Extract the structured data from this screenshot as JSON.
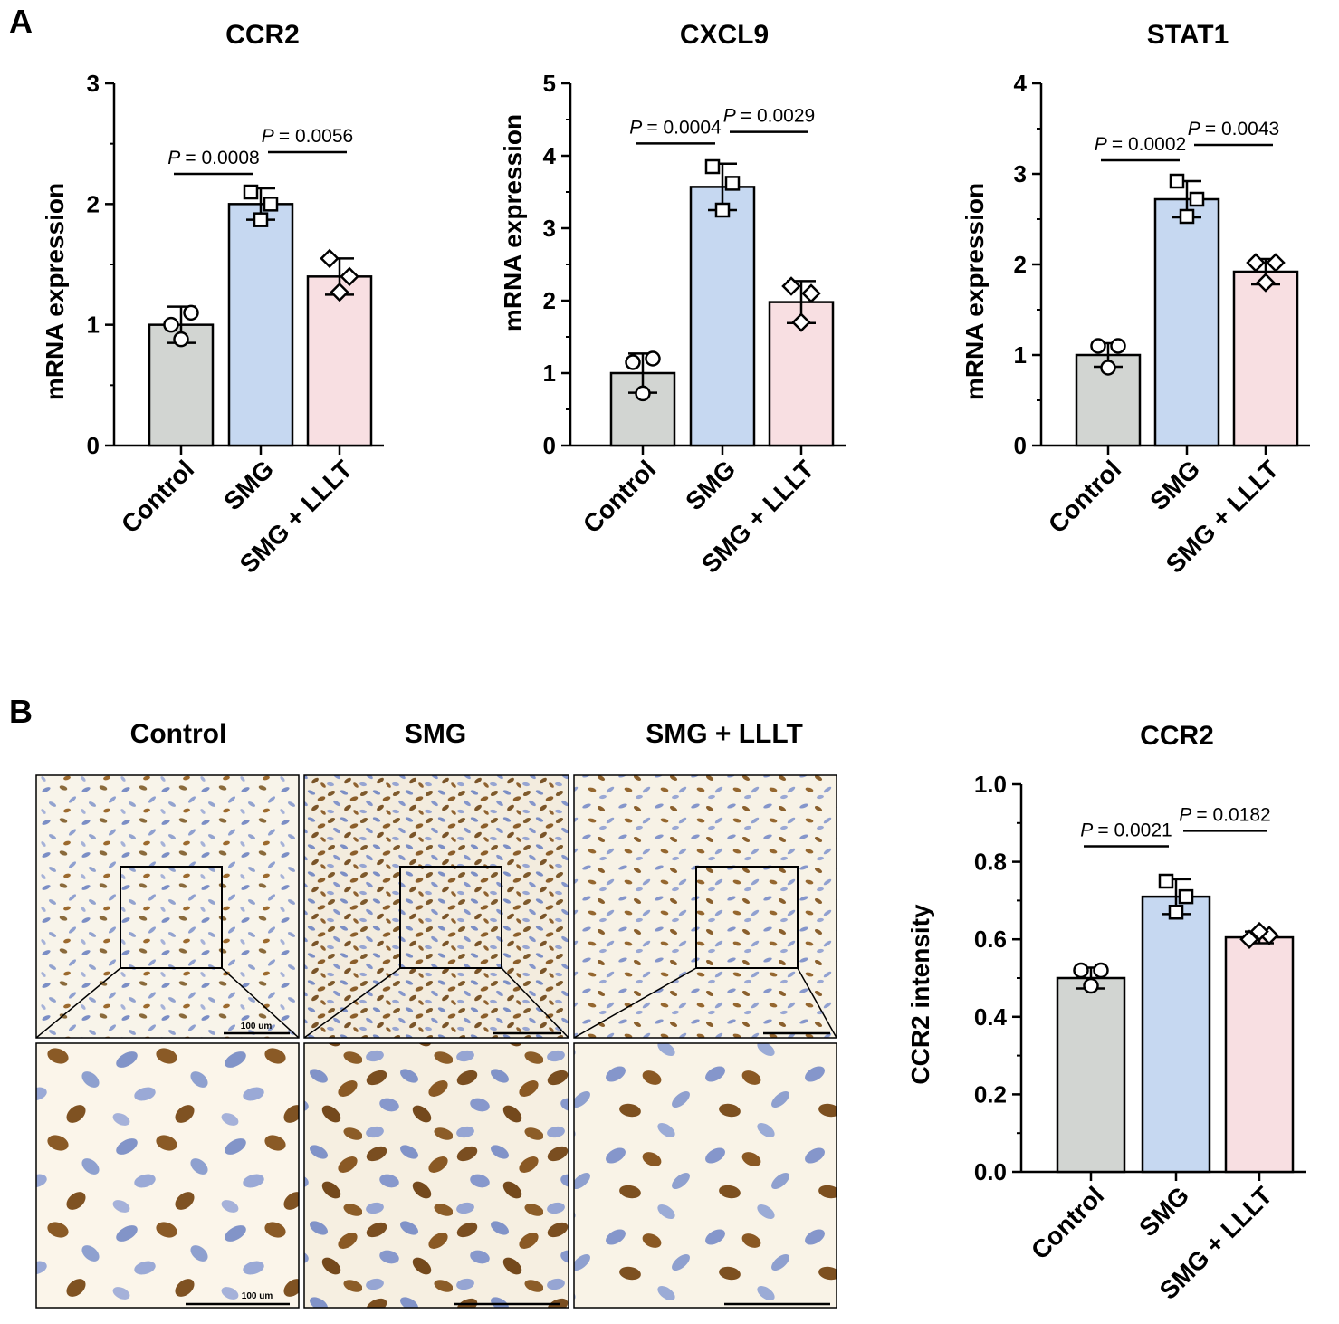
{
  "panel_labels": {
    "a": "A",
    "b": "B"
  },
  "colors": {
    "control": "#d2d5d2",
    "smg": "#c6d8f1",
    "smg_lllt": "#f8dfe2",
    "axis": "#000000"
  },
  "micrograph": {
    "column_titles": [
      "Control",
      "SMG",
      "SMG + LLLT"
    ],
    "scale_bar_label": "100 um"
  },
  "chart_data": [
    {
      "id": "ccr2-mrna",
      "type": "bar",
      "title": "CCR2",
      "xlabel": "",
      "ylabel": "mRNA expression",
      "categories": [
        "Control",
        "SMG",
        "SMG + LLLT"
      ],
      "values": [
        1.0,
        2.0,
        1.4
      ],
      "errors": [
        0.15,
        0.13,
        0.15
      ],
      "points": [
        [
          1.0,
          1.1,
          0.88
        ],
        [
          2.1,
          2.0,
          1.87
        ],
        [
          1.55,
          1.4,
          1.27
        ]
      ],
      "markers": [
        "circle",
        "square",
        "diamond"
      ],
      "ylim": [
        0,
        3
      ],
      "yticks": [
        0,
        1,
        2,
        3
      ],
      "comparisons": [
        {
          "from": 0,
          "to": 1,
          "label": "= 0.0008",
          "at": 2.25
        },
        {
          "from": 1,
          "to": 2,
          "label": "= 0.0056",
          "at": 2.43
        }
      ]
    },
    {
      "id": "cxcl9-mrna",
      "type": "bar",
      "title": "CXCL9",
      "xlabel": "",
      "ylabel": "mRNA expression",
      "categories": [
        "Control",
        "SMG",
        "SMG + LLLT"
      ],
      "values": [
        1.0,
        3.57,
        1.98
      ],
      "errors": [
        0.27,
        0.32,
        0.29
      ],
      "points": [
        [
          1.15,
          1.2,
          0.72
        ],
        [
          3.85,
          3.62,
          3.25
        ],
        [
          2.2,
          2.1,
          1.7
        ]
      ],
      "markers": [
        "circle",
        "square",
        "diamond"
      ],
      "ylim": [
        0,
        5
      ],
      "yticks": [
        0,
        1,
        2,
        3,
        4,
        5
      ],
      "comparisons": [
        {
          "from": 0,
          "to": 1,
          "label": "= 0.0004",
          "at": 4.17
        },
        {
          "from": 1,
          "to": 2,
          "label": "= 0.0029",
          "at": 4.33
        }
      ]
    },
    {
      "id": "stat1-mrna",
      "type": "bar",
      "title": "STAT1",
      "xlabel": "",
      "ylabel": "mRNA expression",
      "categories": [
        "Control",
        "SMG",
        "SMG + LLLT"
      ],
      "values": [
        1.0,
        2.72,
        1.92
      ],
      "errors": [
        0.13,
        0.2,
        0.14
      ],
      "points": [
        [
          1.1,
          1.1,
          0.86
        ],
        [
          2.92,
          2.72,
          2.53
        ],
        [
          2.02,
          2.02,
          1.8
        ]
      ],
      "markers": [
        "circle",
        "square",
        "diamond"
      ],
      "ylim": [
        0,
        4
      ],
      "yticks": [
        0,
        1,
        2,
        3,
        4
      ],
      "comparisons": [
        {
          "from": 0,
          "to": 1,
          "label": "= 0.0002",
          "at": 3.15
        },
        {
          "from": 1,
          "to": 2,
          "label": "= 0.0043",
          "at": 3.32
        }
      ]
    },
    {
      "id": "ccr2-intensity",
      "type": "bar",
      "title": "CCR2",
      "xlabel": "",
      "ylabel": "CCR2 intensity",
      "categories": [
        "Control",
        "SMG",
        "SMG + LLLT"
      ],
      "values": [
        0.5,
        0.71,
        0.605
      ],
      "errors": [
        0.027,
        0.045,
        0.015
      ],
      "points": [
        [
          0.52,
          0.52,
          0.48
        ],
        [
          0.75,
          0.71,
          0.67
        ],
        [
          0.6,
          0.61,
          0.62
        ]
      ],
      "markers": [
        "circle",
        "square",
        "diamond"
      ],
      "ylim": [
        0,
        1.0
      ],
      "yticks": [
        0.0,
        0.2,
        0.4,
        0.6,
        0.8,
        1.0
      ],
      "comparisons": [
        {
          "from": 0,
          "to": 1,
          "label": "= 0.0021",
          "at": 0.84
        },
        {
          "from": 1,
          "to": 2,
          "label": "= 0.0182",
          "at": 0.88
        }
      ]
    }
  ]
}
